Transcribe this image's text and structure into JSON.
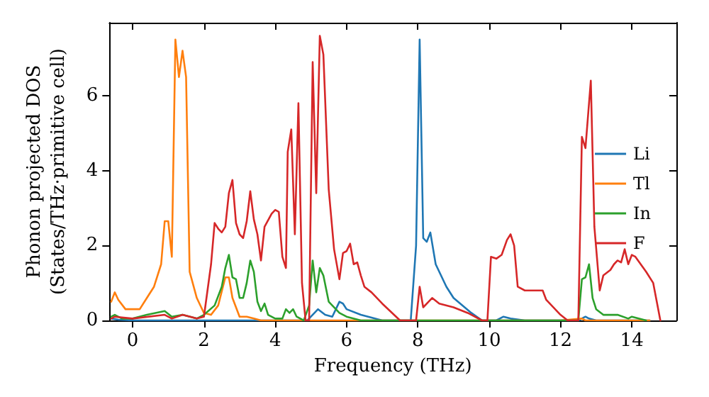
{
  "chart_data": {
    "type": "line",
    "xlabel": "Frequency (THz)",
    "ylabel": "Phonon projected DOS\n(States/THz·primitive cell)",
    "xlim": [
      -0.65,
      15.25
    ],
    "ylim": [
      0,
      7.95
    ],
    "xticks": [
      0,
      2,
      4,
      6,
      8,
      10,
      12,
      14
    ],
    "yticks": [
      0,
      2,
      4,
      6
    ],
    "grid": false,
    "legend": "right",
    "marker": "none",
    "line_style": "solid",
    "series": [
      {
        "name": "Li",
        "color": "#1f77b4",
        "x": [
          -0.6,
          -0.4,
          0,
          1,
          2,
          3,
          4,
          4.9,
          5.0,
          5.2,
          5.4,
          5.6,
          5.8,
          5.9,
          6.0,
          6.4,
          7.0,
          7.8,
          7.95,
          8.05,
          8.15,
          8.25,
          8.35,
          8.5,
          8.8,
          9.0,
          9.5,
          9.8,
          10.2,
          10.4,
          10.6,
          11,
          12.5,
          12.7,
          12.8,
          13,
          14,
          14.5
        ],
        "values": [
          0.05,
          0.02,
          0,
          0,
          0,
          0,
          0,
          0,
          0.1,
          0.3,
          0.15,
          0.1,
          0.5,
          0.45,
          0.3,
          0.15,
          0,
          0,
          2,
          7.5,
          2.2,
          2.1,
          2.35,
          1.5,
          0.9,
          0.6,
          0.2,
          0,
          0,
          0.1,
          0.05,
          0,
          0,
          0.1,
          0.05,
          0,
          0,
          0
        ]
      },
      {
        "name": "Tl",
        "color": "#ff7f0e",
        "x": [
          -0.6,
          -0.5,
          -0.4,
          -0.2,
          0.2,
          0.4,
          0.6,
          0.8,
          0.9,
          1.0,
          1.1,
          1.2,
          1.3,
          1.4,
          1.5,
          1.6,
          1.8,
          2.0,
          2.2,
          2.4,
          2.6,
          2.7,
          2.8,
          3.0,
          3.2,
          3.4,
          3.6,
          5,
          8,
          12,
          12.6,
          12.7,
          13,
          14.5
        ],
        "values": [
          0.5,
          0.75,
          0.55,
          0.3,
          0.3,
          0.6,
          0.9,
          1.5,
          2.65,
          2.65,
          1.7,
          7.5,
          6.5,
          7.2,
          6.5,
          1.3,
          0.6,
          0.2,
          0.15,
          0.4,
          1.15,
          1.15,
          0.6,
          0.1,
          0.1,
          0.05,
          0,
          0,
          0,
          0,
          0.05,
          0,
          0,
          0
        ]
      },
      {
        "name": "In",
        "color": "#2ca02c",
        "x": [
          -0.6,
          -0.5,
          -0.3,
          0,
          0.4,
          0.9,
          1.1,
          1.4,
          1.8,
          2.0,
          2.3,
          2.5,
          2.6,
          2.7,
          2.8,
          2.9,
          3.0,
          3.1,
          3.2,
          3.3,
          3.4,
          3.5,
          3.6,
          3.7,
          3.8,
          4.0,
          4.2,
          4.3,
          4.4,
          4.5,
          4.6,
          4.8,
          4.95,
          5.05,
          5.15,
          5.25,
          5.35,
          5.5,
          5.8,
          6.0,
          6.4,
          12.5,
          12.6,
          12.7,
          12.8,
          12.9,
          13.0,
          13.2,
          13.6,
          13.9,
          14.0,
          14.4
        ],
        "values": [
          0.1,
          0.15,
          0.05,
          0.05,
          0.15,
          0.25,
          0.1,
          0.15,
          0.05,
          0.15,
          0.4,
          0.9,
          1.4,
          1.75,
          1.15,
          1.1,
          0.6,
          0.6,
          1.0,
          1.6,
          1.3,
          0.5,
          0.25,
          0.45,
          0.15,
          0.05,
          0.05,
          0.3,
          0.2,
          0.3,
          0.1,
          0,
          0.4,
          1.6,
          0.75,
          1.4,
          1.2,
          0.5,
          0.2,
          0.1,
          0,
          0,
          1.1,
          1.15,
          1.5,
          0.6,
          0.3,
          0.15,
          0.15,
          0.05,
          0.1,
          0
        ]
      },
      {
        "name": "F",
        "color": "#d62728",
        "x": [
          -0.6,
          -0.5,
          0,
          0.9,
          1.1,
          1.4,
          1.8,
          2.0,
          2.2,
          2.3,
          2.4,
          2.5,
          2.6,
          2.7,
          2.8,
          2.9,
          3.0,
          3.1,
          3.2,
          3.3,
          3.4,
          3.5,
          3.6,
          3.7,
          3.9,
          4.0,
          4.1,
          4.2,
          4.3,
          4.35,
          4.45,
          4.55,
          4.65,
          4.75,
          4.85,
          4.95,
          5.05,
          5.15,
          5.25,
          5.35,
          5.5,
          5.65,
          5.8,
          5.9,
          6.0,
          6.1,
          6.2,
          6.3,
          6.4,
          6.5,
          6.7,
          7.0,
          7.5,
          7.95,
          8.05,
          8.15,
          8.3,
          8.4,
          8.6,
          9.0,
          9.4,
          9.8,
          9.95,
          10.05,
          10.2,
          10.35,
          10.5,
          10.6,
          10.7,
          10.8,
          11.0,
          11.5,
          11.6,
          12.0,
          12.2,
          12.5,
          12.6,
          12.7,
          12.85,
          12.95,
          13.1,
          13.2,
          13.4,
          13.5,
          13.6,
          13.7,
          13.8,
          13.9,
          14.0,
          14.1,
          14.4,
          14.6,
          14.7,
          14.8
        ],
        "values": [
          0.05,
          0.1,
          0.05,
          0.15,
          0.05,
          0.15,
          0.05,
          0.1,
          1.5,
          2.6,
          2.45,
          2.35,
          2.5,
          3.4,
          3.75,
          2.6,
          2.3,
          2.2,
          2.65,
          3.45,
          2.7,
          2.3,
          1.6,
          2.5,
          2.85,
          2.95,
          2.9,
          1.7,
          1.4,
          4.5,
          5.1,
          2.3,
          5.8,
          1.0,
          0,
          0,
          6.9,
          3.4,
          7.6,
          7.1,
          3.5,
          1.9,
          1.1,
          1.8,
          1.85,
          2.05,
          1.5,
          1.55,
          1.2,
          0.9,
          0.75,
          0.45,
          0,
          0,
          0.9,
          0.35,
          0.5,
          0.6,
          0.45,
          0.35,
          0.2,
          0,
          0,
          1.7,
          1.65,
          1.75,
          2.15,
          2.3,
          2.0,
          0.9,
          0.8,
          0.8,
          0.55,
          0.15,
          0,
          0,
          4.9,
          4.6,
          6.4,
          2.5,
          0.8,
          1.2,
          1.35,
          1.5,
          1.6,
          1.55,
          1.9,
          1.5,
          1.75,
          1.7,
          1.3,
          1.0,
          0.5,
          0
        ]
      }
    ]
  }
}
